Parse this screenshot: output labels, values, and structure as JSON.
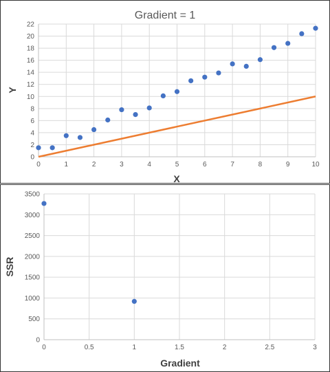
{
  "chart_data": [
    {
      "type": "scatter",
      "title": "Gradient = 1",
      "xlabel": "X",
      "ylabel": "Y",
      "xlim": [
        0,
        10
      ],
      "ylim": [
        0,
        22
      ],
      "xticks": [
        "0",
        "1",
        "2",
        "3",
        "4",
        "5",
        "6",
        "7",
        "8",
        "9",
        "10"
      ],
      "yticks": [
        "0",
        "2",
        "4",
        "6",
        "8",
        "10",
        "12",
        "14",
        "16",
        "18",
        "20",
        "22"
      ],
      "grid": true,
      "series": [
        {
          "type": "scatter",
          "color": "#4472C4",
          "x": [
            0,
            0.5,
            1,
            1.5,
            2,
            2.5,
            3,
            3.5,
            4,
            4.5,
            5,
            5.5,
            6,
            6.5,
            7,
            7.5,
            8,
            8.5,
            9,
            9.5,
            10
          ],
          "y": [
            1.5,
            1.5,
            3.5,
            3.2,
            4.5,
            6.1,
            7.8,
            7.0,
            8.1,
            10.1,
            10.8,
            12.6,
            13.2,
            13.9,
            15.4,
            15.0,
            16.1,
            18.1,
            18.8,
            20.4,
            21.3
          ]
        },
        {
          "type": "line",
          "color": "#ED7D31",
          "x": [
            0,
            10
          ],
          "y": [
            0,
            10
          ]
        }
      ]
    },
    {
      "type": "scatter",
      "title": "",
      "xlabel": "Gradient",
      "ylabel": "SSR",
      "xlim": [
        0,
        3
      ],
      "ylim": [
        0,
        3500
      ],
      "xticks": [
        "0",
        "0.5",
        "1",
        "1.5",
        "2",
        "2.5",
        "3"
      ],
      "yticks": [
        "0",
        "500",
        "1000",
        "1500",
        "2000",
        "2500",
        "3000",
        "3500"
      ],
      "grid": true,
      "series": [
        {
          "type": "scatter",
          "color": "#4472C4",
          "x": [
            0,
            1
          ],
          "y": [
            3270,
            920
          ]
        }
      ]
    }
  ]
}
